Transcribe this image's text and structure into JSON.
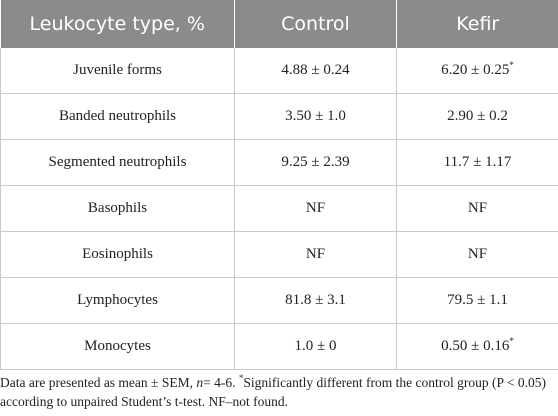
{
  "table": {
    "headers": [
      "Leukocyte type, %",
      "Control",
      "Kefir"
    ],
    "rows": [
      {
        "type": "Juvenile forms",
        "control": "4.88 ± 0.24",
        "kefir": "6.20 ± 0.25",
        "kefir_mark": "*"
      },
      {
        "type": "Banded neutrophils",
        "control": "3.50 ± 1.0",
        "kefir": "2.90 ± 0.2",
        "kefir_mark": ""
      },
      {
        "type": "Segmented neutrophils",
        "control": "9.25 ± 2.39",
        "kefir": "11.7 ± 1.17",
        "kefir_mark": ""
      },
      {
        "type": "Basophils",
        "control": "NF",
        "kefir": "NF",
        "kefir_mark": ""
      },
      {
        "type": "Eosinophils",
        "control": "NF",
        "kefir": "NF",
        "kefir_mark": ""
      },
      {
        "type": "Lymphocytes",
        "control": "81.8 ± 3.1",
        "kefir": "79.5 ± 1.1",
        "kefir_mark": ""
      },
      {
        "type": "Monocytes",
        "control": "1.0 ± 0",
        "kefir": "0.50 ± 0.16",
        "kefir_mark": "*"
      }
    ]
  },
  "footnote": {
    "part1": "Data are presented as mean ± SEM, ",
    "n_label": "n",
    "part2": "= 4-6. ",
    "star": "*",
    "part3": "Significantly different from the control group (P < 0.05) according to unpaired Student’s t-test. NF–not found."
  }
}
